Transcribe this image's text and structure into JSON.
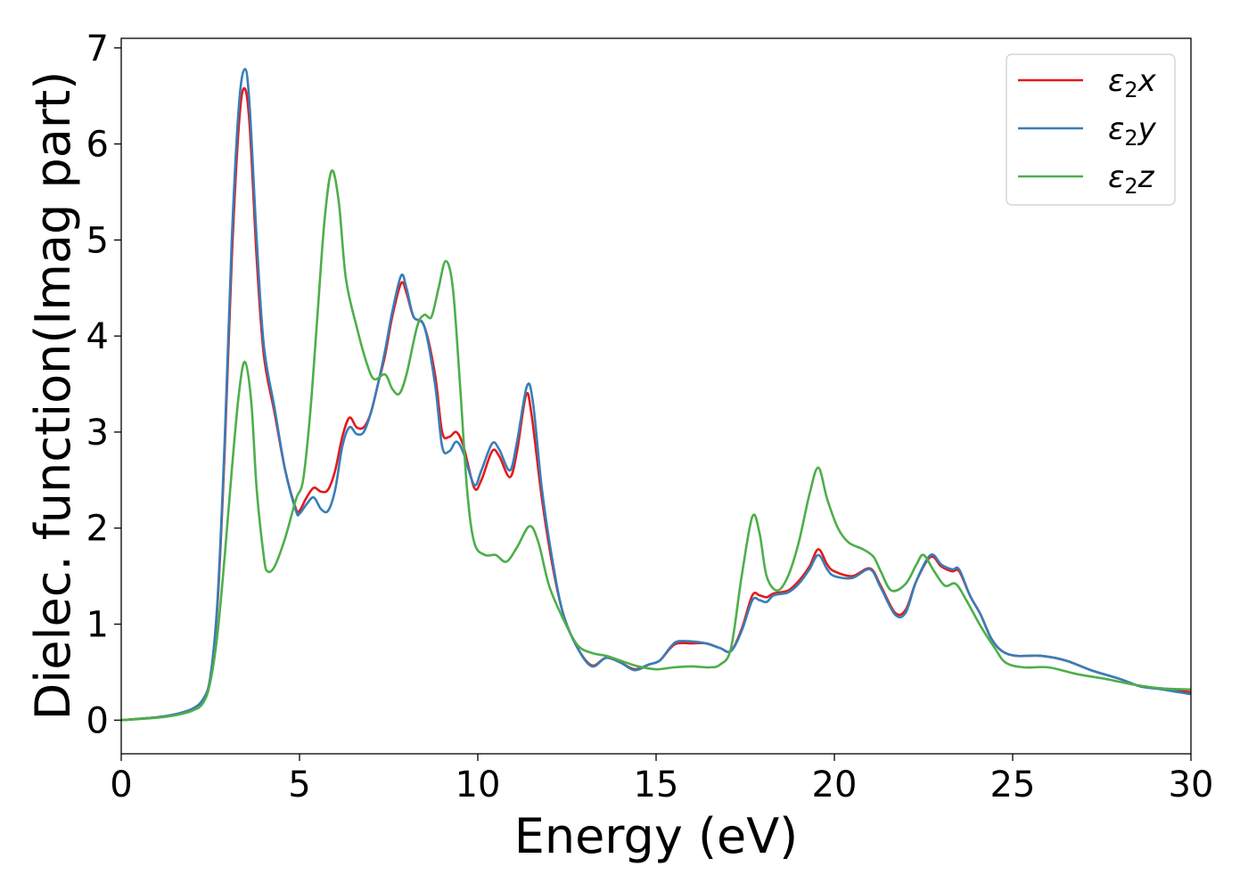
{
  "chart_data": {
    "type": "line",
    "title": "",
    "xlabel": "Energy (eV)",
    "ylabel": "Dielec. function(Imag part)",
    "xlim": [
      0,
      30
    ],
    "ylim": [
      -0.35,
      7.1
    ],
    "xticks": [
      0,
      5,
      10,
      15,
      20,
      25,
      30
    ],
    "yticks": [
      0,
      1,
      2,
      3,
      4,
      5,
      6,
      7
    ],
    "grid": false,
    "legend_position": "top-right",
    "series": [
      {
        "name": "ε₂x",
        "legend_base": "ε",
        "legend_sub": "2",
        "legend_suffix": "x",
        "color": "#e41a1c",
        "points": [
          [
            0,
            0
          ],
          [
            1,
            0.03
          ],
          [
            1.5,
            0.06
          ],
          [
            2,
            0.12
          ],
          [
            2.3,
            0.22
          ],
          [
            2.5,
            0.45
          ],
          [
            2.7,
            1.2
          ],
          [
            2.9,
            2.8
          ],
          [
            3.1,
            4.8
          ],
          [
            3.3,
            6.2
          ],
          [
            3.45,
            6.58
          ],
          [
            3.6,
            6.2
          ],
          [
            3.8,
            4.8
          ],
          [
            4.0,
            3.8
          ],
          [
            4.3,
            3.2
          ],
          [
            4.6,
            2.6
          ],
          [
            4.9,
            2.2
          ],
          [
            5.0,
            2.18
          ],
          [
            5.2,
            2.32
          ],
          [
            5.4,
            2.42
          ],
          [
            5.6,
            2.38
          ],
          [
            5.8,
            2.4
          ],
          [
            6.0,
            2.6
          ],
          [
            6.2,
            2.95
          ],
          [
            6.4,
            3.15
          ],
          [
            6.6,
            3.05
          ],
          [
            6.8,
            3.05
          ],
          [
            7.0,
            3.2
          ],
          [
            7.2,
            3.5
          ],
          [
            7.4,
            3.8
          ],
          [
            7.6,
            4.2
          ],
          [
            7.85,
            4.55
          ],
          [
            8.0,
            4.45
          ],
          [
            8.2,
            4.2
          ],
          [
            8.5,
            4.1
          ],
          [
            8.8,
            3.6
          ],
          [
            9.0,
            3.0
          ],
          [
            9.2,
            2.95
          ],
          [
            9.4,
            3.0
          ],
          [
            9.6,
            2.85
          ],
          [
            9.9,
            2.42
          ],
          [
            10.1,
            2.5
          ],
          [
            10.4,
            2.8
          ],
          [
            10.6,
            2.75
          ],
          [
            10.9,
            2.53
          ],
          [
            11.1,
            2.8
          ],
          [
            11.35,
            3.38
          ],
          [
            11.5,
            3.2
          ],
          [
            11.8,
            2.3
          ],
          [
            12.1,
            1.6
          ],
          [
            12.4,
            1.1
          ],
          [
            12.8,
            0.75
          ],
          [
            13.2,
            0.57
          ],
          [
            13.6,
            0.65
          ],
          [
            14.0,
            0.6
          ],
          [
            14.4,
            0.53
          ],
          [
            14.8,
            0.58
          ],
          [
            15.1,
            0.62
          ],
          [
            15.4,
            0.75
          ],
          [
            15.6,
            0.8
          ],
          [
            16.0,
            0.8
          ],
          [
            16.4,
            0.8
          ],
          [
            16.8,
            0.75
          ],
          [
            17.1,
            0.72
          ],
          [
            17.4,
            0.95
          ],
          [
            17.7,
            1.3
          ],
          [
            17.9,
            1.3
          ],
          [
            18.1,
            1.28
          ],
          [
            18.3,
            1.32
          ],
          [
            18.7,
            1.35
          ],
          [
            19.0,
            1.45
          ],
          [
            19.3,
            1.6
          ],
          [
            19.55,
            1.78
          ],
          [
            19.8,
            1.62
          ],
          [
            20.0,
            1.55
          ],
          [
            20.5,
            1.5
          ],
          [
            21.0,
            1.58
          ],
          [
            21.3,
            1.4
          ],
          [
            21.7,
            1.12
          ],
          [
            22.0,
            1.15
          ],
          [
            22.3,
            1.45
          ],
          [
            22.7,
            1.7
          ],
          [
            23.0,
            1.6
          ],
          [
            23.3,
            1.55
          ],
          [
            23.5,
            1.55
          ],
          [
            23.8,
            1.3
          ],
          [
            24.1,
            1.1
          ],
          [
            24.4,
            0.85
          ],
          [
            24.7,
            0.72
          ],
          [
            25.1,
            0.67
          ],
          [
            25.8,
            0.67
          ],
          [
            26.5,
            0.62
          ],
          [
            27.2,
            0.52
          ],
          [
            28.0,
            0.43
          ],
          [
            28.6,
            0.35
          ],
          [
            29.2,
            0.33
          ],
          [
            30,
            0.29
          ]
        ]
      },
      {
        "name": "ε₂y",
        "legend_base": "ε",
        "legend_sub": "2",
        "legend_suffix": "y",
        "color": "#377eb8",
        "points": [
          [
            0,
            0
          ],
          [
            1,
            0.03
          ],
          [
            1.5,
            0.06
          ],
          [
            2,
            0.12
          ],
          [
            2.3,
            0.22
          ],
          [
            2.5,
            0.45
          ],
          [
            2.7,
            1.25
          ],
          [
            2.9,
            2.9
          ],
          [
            3.1,
            5.0
          ],
          [
            3.3,
            6.4
          ],
          [
            3.47,
            6.78
          ],
          [
            3.6,
            6.4
          ],
          [
            3.8,
            5.0
          ],
          [
            4.0,
            3.9
          ],
          [
            4.3,
            3.25
          ],
          [
            4.6,
            2.6
          ],
          [
            4.9,
            2.18
          ],
          [
            5.0,
            2.15
          ],
          [
            5.2,
            2.25
          ],
          [
            5.4,
            2.32
          ],
          [
            5.6,
            2.2
          ],
          [
            5.8,
            2.18
          ],
          [
            6.0,
            2.4
          ],
          [
            6.2,
            2.85
          ],
          [
            6.4,
            3.05
          ],
          [
            6.6,
            2.98
          ],
          [
            6.8,
            3.0
          ],
          [
            7.0,
            3.2
          ],
          [
            7.2,
            3.5
          ],
          [
            7.4,
            3.85
          ],
          [
            7.6,
            4.25
          ],
          [
            7.85,
            4.63
          ],
          [
            8.0,
            4.5
          ],
          [
            8.2,
            4.2
          ],
          [
            8.5,
            4.1
          ],
          [
            8.8,
            3.5
          ],
          [
            9.0,
            2.85
          ],
          [
            9.2,
            2.8
          ],
          [
            9.4,
            2.9
          ],
          [
            9.6,
            2.78
          ],
          [
            9.9,
            2.45
          ],
          [
            10.1,
            2.6
          ],
          [
            10.4,
            2.88
          ],
          [
            10.6,
            2.82
          ],
          [
            10.9,
            2.6
          ],
          [
            11.1,
            2.9
          ],
          [
            11.38,
            3.48
          ],
          [
            11.55,
            3.3
          ],
          [
            11.8,
            2.4
          ],
          [
            12.1,
            1.65
          ],
          [
            12.4,
            1.1
          ],
          [
            12.8,
            0.75
          ],
          [
            13.2,
            0.56
          ],
          [
            13.6,
            0.65
          ],
          [
            14.0,
            0.6
          ],
          [
            14.4,
            0.52
          ],
          [
            14.8,
            0.58
          ],
          [
            15.1,
            0.62
          ],
          [
            15.4,
            0.76
          ],
          [
            15.6,
            0.82
          ],
          [
            16.0,
            0.82
          ],
          [
            16.4,
            0.8
          ],
          [
            16.8,
            0.75
          ],
          [
            17.1,
            0.72
          ],
          [
            17.4,
            0.93
          ],
          [
            17.7,
            1.25
          ],
          [
            17.9,
            1.25
          ],
          [
            18.1,
            1.23
          ],
          [
            18.3,
            1.3
          ],
          [
            18.7,
            1.33
          ],
          [
            19.0,
            1.42
          ],
          [
            19.3,
            1.57
          ],
          [
            19.55,
            1.72
          ],
          [
            19.8,
            1.57
          ],
          [
            20.0,
            1.5
          ],
          [
            20.5,
            1.48
          ],
          [
            21.0,
            1.57
          ],
          [
            21.3,
            1.38
          ],
          [
            21.7,
            1.1
          ],
          [
            22.0,
            1.12
          ],
          [
            22.3,
            1.45
          ],
          [
            22.7,
            1.72
          ],
          [
            23.0,
            1.62
          ],
          [
            23.3,
            1.57
          ],
          [
            23.5,
            1.57
          ],
          [
            23.8,
            1.3
          ],
          [
            24.1,
            1.1
          ],
          [
            24.4,
            0.85
          ],
          [
            24.7,
            0.72
          ],
          [
            25.1,
            0.67
          ],
          [
            25.8,
            0.67
          ],
          [
            26.5,
            0.62
          ],
          [
            27.2,
            0.52
          ],
          [
            28.0,
            0.43
          ],
          [
            28.6,
            0.35
          ],
          [
            29.2,
            0.32
          ],
          [
            30,
            0.27
          ]
        ]
      },
      {
        "name": "ε₂z",
        "legend_base": "ε",
        "legend_sub": "2",
        "legend_suffix": "z",
        "color": "#4daf4a",
        "points": [
          [
            0,
            0
          ],
          [
            1,
            0.025
          ],
          [
            1.5,
            0.05
          ],
          [
            2,
            0.1
          ],
          [
            2.3,
            0.18
          ],
          [
            2.5,
            0.4
          ],
          [
            2.7,
            0.9
          ],
          [
            2.9,
            1.7
          ],
          [
            3.1,
            2.6
          ],
          [
            3.3,
            3.4
          ],
          [
            3.47,
            3.73
          ],
          [
            3.65,
            3.3
          ],
          [
            3.8,
            2.4
          ],
          [
            4.0,
            1.7
          ],
          [
            4.1,
            1.55
          ],
          [
            4.3,
            1.6
          ],
          [
            4.6,
            1.9
          ],
          [
            4.9,
            2.3
          ],
          [
            5.1,
            2.5
          ],
          [
            5.3,
            3.2
          ],
          [
            5.5,
            4.2
          ],
          [
            5.7,
            5.2
          ],
          [
            5.9,
            5.72
          ],
          [
            6.1,
            5.4
          ],
          [
            6.3,
            4.6
          ],
          [
            6.6,
            4.1
          ],
          [
            6.9,
            3.7
          ],
          [
            7.1,
            3.55
          ],
          [
            7.4,
            3.6
          ],
          [
            7.6,
            3.45
          ],
          [
            7.8,
            3.4
          ],
          [
            8.0,
            3.6
          ],
          [
            8.3,
            4.1
          ],
          [
            8.5,
            4.22
          ],
          [
            8.7,
            4.2
          ],
          [
            8.9,
            4.5
          ],
          [
            9.1,
            4.78
          ],
          [
            9.3,
            4.5
          ],
          [
            9.5,
            3.5
          ],
          [
            9.7,
            2.4
          ],
          [
            9.9,
            1.85
          ],
          [
            10.2,
            1.72
          ],
          [
            10.5,
            1.72
          ],
          [
            10.8,
            1.65
          ],
          [
            11.1,
            1.8
          ],
          [
            11.45,
            2.02
          ],
          [
            11.7,
            1.85
          ],
          [
            12.0,
            1.4
          ],
          [
            12.4,
            1.05
          ],
          [
            12.8,
            0.78
          ],
          [
            13.2,
            0.7
          ],
          [
            13.6,
            0.67
          ],
          [
            14.0,
            0.62
          ],
          [
            14.5,
            0.56
          ],
          [
            15.0,
            0.53
          ],
          [
            15.5,
            0.55
          ],
          [
            16.0,
            0.56
          ],
          [
            16.5,
            0.55
          ],
          [
            16.8,
            0.58
          ],
          [
            17.1,
            0.75
          ],
          [
            17.4,
            1.5
          ],
          [
            17.7,
            2.12
          ],
          [
            17.9,
            1.95
          ],
          [
            18.1,
            1.5
          ],
          [
            18.4,
            1.35
          ],
          [
            18.7,
            1.5
          ],
          [
            19.0,
            1.85
          ],
          [
            19.3,
            2.35
          ],
          [
            19.55,
            2.63
          ],
          [
            19.8,
            2.3
          ],
          [
            20.1,
            2.0
          ],
          [
            20.4,
            1.85
          ],
          [
            20.8,
            1.78
          ],
          [
            21.1,
            1.7
          ],
          [
            21.3,
            1.55
          ],
          [
            21.6,
            1.35
          ],
          [
            22.0,
            1.42
          ],
          [
            22.3,
            1.62
          ],
          [
            22.5,
            1.72
          ],
          [
            22.8,
            1.55
          ],
          [
            23.1,
            1.4
          ],
          [
            23.4,
            1.42
          ],
          [
            23.7,
            1.25
          ],
          [
            24.1,
            0.98
          ],
          [
            24.5,
            0.75
          ],
          [
            24.8,
            0.6
          ],
          [
            25.3,
            0.55
          ],
          [
            26.0,
            0.55
          ],
          [
            26.8,
            0.48
          ],
          [
            27.6,
            0.43
          ],
          [
            28.4,
            0.37
          ],
          [
            29.2,
            0.33
          ],
          [
            30,
            0.32
          ]
        ]
      }
    ]
  }
}
